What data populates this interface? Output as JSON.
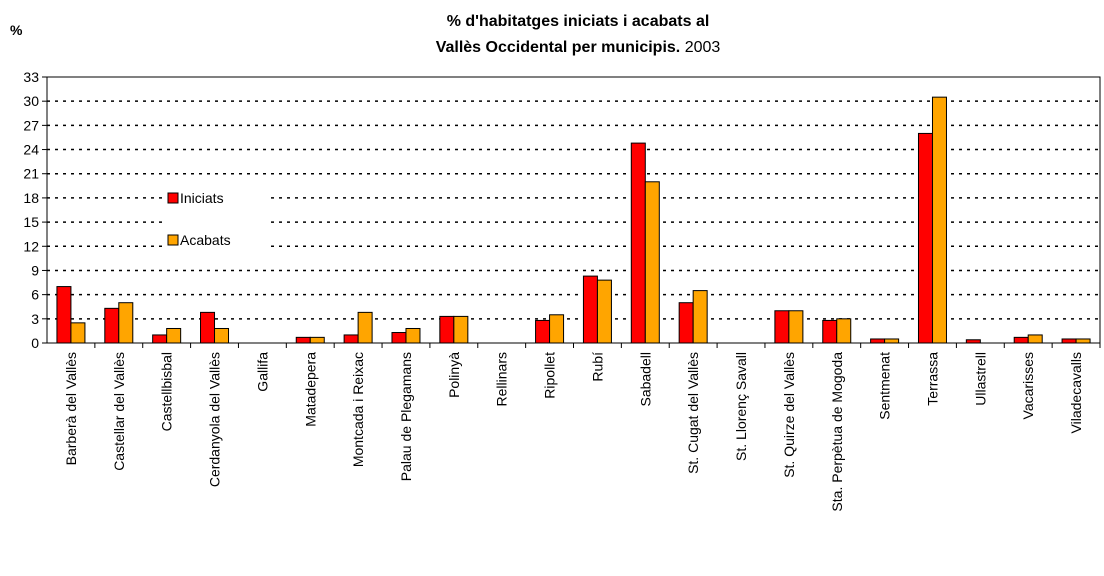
{
  "chart_data": {
    "type": "bar",
    "title": [
      "% d'habitatges iniciats i acabats al",
      "Vallès Occidental per municipis."
    ],
    "subtitle": "2003",
    "ylabel": "%",
    "categories": [
      "Barberà del Vallès",
      "Castellar del Vallès",
      "Castellbisbal",
      "Cerdanyola del Vallès",
      "Gallifa",
      "Matadepera",
      "Montcada i Reixac",
      "Palau de Plegamans",
      "Polinyà",
      "Rellinars",
      "Ripollet",
      "Rubí",
      "Sabadell",
      "St. Cugat del Vallès",
      "St. Llorenç Savall",
      "St. Quirze del Vallès",
      "Sta. Perpètua de Mogoda",
      "Sentmenat",
      "Terrassa",
      "Ullastrell",
      "Vacarisses",
      "Viladecavalls"
    ],
    "series": [
      {
        "name": "Iniciats",
        "color": "#ff0000",
        "values": [
          7.0,
          4.3,
          1.0,
          3.8,
          0,
          0.7,
          1.0,
          1.3,
          3.3,
          0,
          2.8,
          8.3,
          24.8,
          5.0,
          0,
          4.0,
          2.8,
          0.5,
          26.0,
          0.4,
          0.7,
          0.5
        ]
      },
      {
        "name": "Acabats",
        "color": "#ffa500",
        "values": [
          2.5,
          5.0,
          1.8,
          1.8,
          0,
          0.7,
          3.8,
          1.8,
          3.3,
          0,
          3.5,
          7.8,
          20.0,
          6.5,
          0,
          4.0,
          3.0,
          0.5,
          30.5,
          0,
          1.0,
          0.5
        ]
      }
    ],
    "ylim": [
      0,
      33
    ],
    "yticks": [
      0,
      3,
      6,
      9,
      12,
      15,
      18,
      21,
      24,
      27,
      30,
      33
    ],
    "grid": true,
    "legend": "left"
  }
}
